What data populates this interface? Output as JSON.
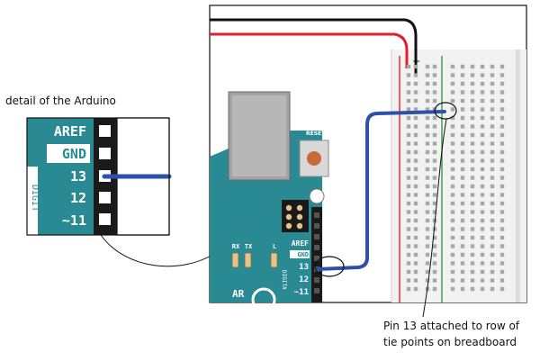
{
  "detail_caption": "detail of the Arduino",
  "detail_pins": [
    "AREF",
    "GND",
    "13",
    "12",
    "~11"
  ],
  "detail_side_label": "DIGIT",
  "board_pins": [
    "AREF",
    "GND",
    "13",
    "12",
    "~11"
  ],
  "board_side_label": "DIGITA",
  "reset_label": "RESET",
  "led_labels": [
    "RX",
    "TX",
    "L"
  ],
  "board_logo_fragment": "AR",
  "annotation": [
    "Pin 13 attached to row of",
    "tie points on breadboard"
  ],
  "colors": {
    "arduino_teal": "#2a8a94",
    "header_black": "#1a1a1a",
    "wire_blue": "#2f4fa8",
    "wire_red": "#e0212b",
    "wire_black": "#111111",
    "breadboard": "#f2f2f2",
    "hole": "#a8a8a8"
  }
}
